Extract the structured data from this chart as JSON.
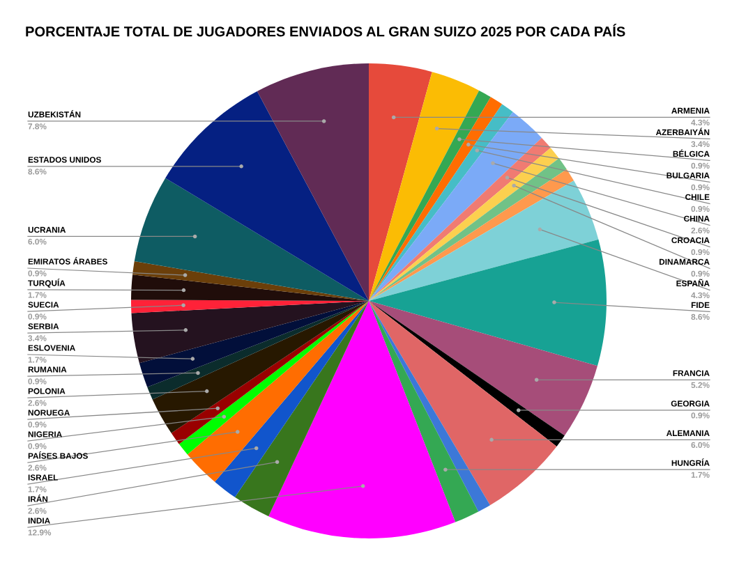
{
  "chart_data": {
    "type": "pie",
    "title": "PORCENTAJE TOTAL DE JUGADORES ENVIADOS AL GRAN SUIZO 2025 POR CADA PAÍS",
    "categories": [
      "ARMENIA",
      "AZERBAIYÁN",
      "BÉLGICA",
      "BULGARIA",
      "CHILE",
      "CHINA",
      "CROACIA",
      "DINAMARCA",
      null,
      null,
      "ESPAÑA",
      "FIDE",
      "FRANCIA",
      "GEORGIA",
      "ALEMANIA",
      null,
      "HUNGRÍA",
      "INDIA",
      "IRÁN",
      "ISRAEL",
      "PAÍSES BAJOS",
      "NIGERIA",
      "NORUEGA",
      "POLONIA",
      "RUMANIA",
      "ESLOVENIA",
      "SERBIA",
      "SUECIA",
      "TURQUÍA",
      "EMIRATOS ÁRABES",
      "UCRANIA",
      "ESTADOS UNIDOS",
      "UZBEKISTÁN"
    ],
    "values": [
      4.3,
      3.4,
      0.9,
      0.9,
      0.9,
      2.6,
      0.9,
      0.9,
      0.9,
      0.9,
      4.3,
      8.6,
      5.2,
      0.9,
      6.0,
      0.9,
      1.7,
      12.9,
      2.6,
      1.7,
      2.6,
      0.9,
      0.9,
      2.6,
      0.9,
      1.7,
      3.4,
      0.9,
      1.7,
      0.9,
      6.0,
      8.6,
      7.8
    ],
    "value_labels": [
      "4.3%",
      "3.4%",
      "0.9%",
      "0.9%",
      "0.9%",
      "2.6%",
      "0.9%",
      "0.9%",
      null,
      null,
      "4.3%",
      "8.6%",
      "5.2%",
      "0.9%",
      "6.0%",
      null,
      "1.7%",
      "12.9%",
      "2.6%",
      "1.7%",
      "2.6%",
      "0.9%",
      "0.9%",
      "2.6%",
      "0.9%",
      "1.7%",
      "3.4%",
      "0.9%",
      "1.7%",
      "0.9%",
      "6.0%",
      "8.6%",
      "7.8%"
    ],
    "colors": [
      "#e64a3b",
      "#fbbc04",
      "#34a853",
      "#ff6d01",
      "#46bdc6",
      "#7baaf7",
      "#f07b72",
      "#fcd04f",
      "#71c287",
      "#ff994d",
      "#7ed1d7",
      "#17a294",
      "#a64d79",
      "#000000",
      "#e06666",
      "#3c78d8",
      "#34a853",
      "#ff00ff",
      "#38761d",
      "#1155cc",
      "#ff6d01",
      "#00ff00",
      "#990000",
      "#271800",
      "#0b2c2c",
      "#020f3a",
      "#24121f",
      "#ff2238",
      "#200d0a",
      "#6b3f0a",
      "#0e5c63",
      "#052082",
      "#612b55"
    ]
  }
}
